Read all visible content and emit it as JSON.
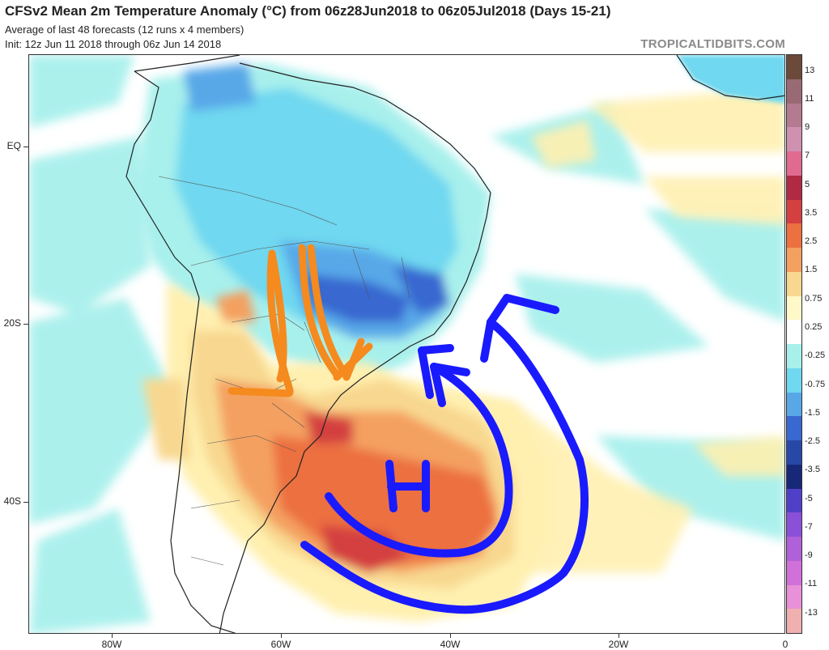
{
  "header": {
    "title": "CFSv2 Mean 2m Temperature Anomaly (°C) from 06z28Jun2018 to 06z05Jul2018 (Days 15-21)",
    "subtitle": "Average of last 48 forecasts (12 runs x 4 members)",
    "init": "Init: 12z Jun 11 2018 through 06z Jun 14 2018",
    "brand": "TROPICALTIDBITS.COM"
  },
  "axes": {
    "lat_labels": [
      "EQ",
      "20S",
      "40S"
    ],
    "lon_labels": [
      "80W",
      "60W",
      "40W",
      "20W",
      "0"
    ]
  },
  "colorbar": {
    "labels": [
      "13",
      "11",
      "9",
      "7",
      "5",
      "3.5",
      "2.5",
      "1.5",
      "0.75",
      "0.25",
      "-0.25",
      "-0.75",
      "-1.5",
      "-2.5",
      "-3.5",
      "-5",
      "-7",
      "-9",
      "-11",
      "-13"
    ],
    "colors": [
      "#6b4a3a",
      "#9a6a74",
      "#b47a90",
      "#d090b0",
      "#e06a90",
      "#b02a44",
      "#d44040",
      "#ec7040",
      "#f4a060",
      "#f8d890",
      "#fff8c8",
      "#ffffff",
      "#a8f0ec",
      "#70d8f0",
      "#58a8e8",
      "#3868d0",
      "#2848a8",
      "#182878",
      "#5040c8",
      "#8a50d8",
      "#b060d8",
      "#d070d8",
      "#e890d8",
      "#f0b0b0"
    ],
    "colors_note": ""
  }
}
